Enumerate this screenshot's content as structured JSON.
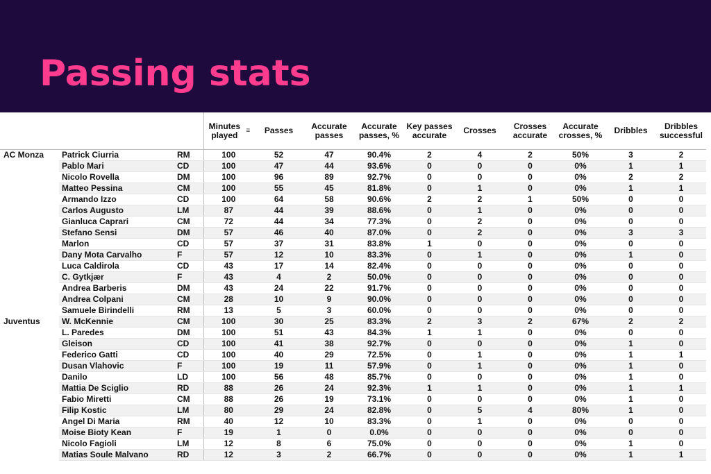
{
  "header": {
    "title": "Passing stats",
    "bg_color": "#1f0a3d",
    "title_color": "#ff3c8e"
  },
  "columns": {
    "minutes": "Minutes played",
    "passes": "Passes",
    "acc_passes": "Accurate passes",
    "acc_pct": "Accurate passes, %",
    "key": "Key passes accurate",
    "crosses": "Crosses",
    "cross_acc": "Crosses accurate",
    "cross_pct": "Accurate crosses, %",
    "dribbles": "Dribbles",
    "drib_succ": "Dribbles successful",
    "sort_icon": "sort-descending-icon"
  },
  "rows": [
    {
      "team": "AC Monza",
      "player": "Patrick Ciurria",
      "pos": "RM",
      "min": "100",
      "passes": "52",
      "acc": "47",
      "pct": "90.4%",
      "key": "2",
      "cr": "4",
      "cra": "2",
      "crp": "50%",
      "dr": "3",
      "drs": "2"
    },
    {
      "team": "",
      "player": "Pablo Mari",
      "pos": "CD",
      "min": "100",
      "passes": "47",
      "acc": "44",
      "pct": "93.6%",
      "key": "0",
      "cr": "0",
      "cra": "0",
      "crp": "0%",
      "dr": "1",
      "drs": "1"
    },
    {
      "team": "",
      "player": "Nicolo Rovella",
      "pos": "DM",
      "min": "100",
      "passes": "96",
      "acc": "89",
      "pct": "92.7%",
      "key": "0",
      "cr": "0",
      "cra": "0",
      "crp": "0%",
      "dr": "2",
      "drs": "2"
    },
    {
      "team": "",
      "player": "Matteo Pessina",
      "pos": "CM",
      "min": "100",
      "passes": "55",
      "acc": "45",
      "pct": "81.8%",
      "key": "0",
      "cr": "1",
      "cra": "0",
      "crp": "0%",
      "dr": "1",
      "drs": "1"
    },
    {
      "team": "",
      "player": "Armando Izzo",
      "pos": "CD",
      "min": "100",
      "passes": "64",
      "acc": "58",
      "pct": "90.6%",
      "key": "2",
      "cr": "2",
      "cra": "1",
      "crp": "50%",
      "dr": "0",
      "drs": "0"
    },
    {
      "team": "",
      "player": "Carlos Augusto",
      "pos": "LM",
      "min": "87",
      "passes": "44",
      "acc": "39",
      "pct": "88.6%",
      "key": "0",
      "cr": "1",
      "cra": "0",
      "crp": "0%",
      "dr": "0",
      "drs": "0"
    },
    {
      "team": "",
      "player": "Gianluca Caprari",
      "pos": "CM",
      "min": "72",
      "passes": "44",
      "acc": "34",
      "pct": "77.3%",
      "key": "0",
      "cr": "2",
      "cra": "0",
      "crp": "0%",
      "dr": "0",
      "drs": "0"
    },
    {
      "team": "",
      "player": "Stefano Sensi",
      "pos": "DM",
      "min": "57",
      "passes": "46",
      "acc": "40",
      "pct": "87.0%",
      "key": "0",
      "cr": "2",
      "cra": "0",
      "crp": "0%",
      "dr": "3",
      "drs": "3"
    },
    {
      "team": "",
      "player": "Marlon",
      "pos": "CD",
      "min": "57",
      "passes": "37",
      "acc": "31",
      "pct": "83.8%",
      "key": "1",
      "cr": "0",
      "cra": "0",
      "crp": "0%",
      "dr": "0",
      "drs": "0"
    },
    {
      "team": "",
      "player": "Dany Mota Carvalho",
      "pos": "F",
      "min": "57",
      "passes": "12",
      "acc": "10",
      "pct": "83.3%",
      "key": "0",
      "cr": "1",
      "cra": "0",
      "crp": "0%",
      "dr": "1",
      "drs": "0"
    },
    {
      "team": "",
      "player": "Luca Caldirola",
      "pos": "CD",
      "min": "43",
      "passes": "17",
      "acc": "14",
      "pct": "82.4%",
      "key": "0",
      "cr": "0",
      "cra": "0",
      "crp": "0%",
      "dr": "0",
      "drs": "0"
    },
    {
      "team": "",
      "player": "C. Gytkjær",
      "pos": "F",
      "min": "43",
      "passes": "4",
      "acc": "2",
      "pct": "50.0%",
      "key": "0",
      "cr": "0",
      "cra": "0",
      "crp": "0%",
      "dr": "0",
      "drs": "0"
    },
    {
      "team": "",
      "player": "Andrea Barberis",
      "pos": "DM",
      "min": "43",
      "passes": "24",
      "acc": "22",
      "pct": "91.7%",
      "key": "0",
      "cr": "0",
      "cra": "0",
      "crp": "0%",
      "dr": "0",
      "drs": "0"
    },
    {
      "team": "",
      "player": "Andrea Colpani",
      "pos": "CM",
      "min": "28",
      "passes": "10",
      "acc": "9",
      "pct": "90.0%",
      "key": "0",
      "cr": "0",
      "cra": "0",
      "crp": "0%",
      "dr": "0",
      "drs": "0"
    },
    {
      "team": "",
      "player": "Samuele Birindelli",
      "pos": "RM",
      "min": "13",
      "passes": "5",
      "acc": "3",
      "pct": "60.0%",
      "key": "0",
      "cr": "0",
      "cra": "0",
      "crp": "0%",
      "dr": "0",
      "drs": "0"
    },
    {
      "team": "Juventus",
      "player": "W. McKennie",
      "pos": "CM",
      "min": "100",
      "passes": "30",
      "acc": "25",
      "pct": "83.3%",
      "key": "2",
      "cr": "3",
      "cra": "2",
      "crp": "67%",
      "dr": "2",
      "drs": "2"
    },
    {
      "team": "",
      "player": "L. Paredes",
      "pos": "DM",
      "min": "100",
      "passes": "51",
      "acc": "43",
      "pct": "84.3%",
      "key": "1",
      "cr": "1",
      "cra": "0",
      "crp": "0%",
      "dr": "0",
      "drs": "0"
    },
    {
      "team": "",
      "player": "Gleison",
      "pos": "CD",
      "min": "100",
      "passes": "41",
      "acc": "38",
      "pct": "92.7%",
      "key": "0",
      "cr": "0",
      "cra": "0",
      "crp": "0%",
      "dr": "1",
      "drs": "0"
    },
    {
      "team": "",
      "player": "Federico Gatti",
      "pos": "CD",
      "min": "100",
      "passes": "40",
      "acc": "29",
      "pct": "72.5%",
      "key": "0",
      "cr": "1",
      "cra": "0",
      "crp": "0%",
      "dr": "1",
      "drs": "1"
    },
    {
      "team": "",
      "player": "Dusan Vlahovic",
      "pos": "F",
      "min": "100",
      "passes": "19",
      "acc": "11",
      "pct": "57.9%",
      "key": "0",
      "cr": "1",
      "cra": "0",
      "crp": "0%",
      "dr": "1",
      "drs": "0"
    },
    {
      "team": "",
      "player": "Danilo",
      "pos": "LD",
      "min": "100",
      "passes": "56",
      "acc": "48",
      "pct": "85.7%",
      "key": "0",
      "cr": "0",
      "cra": "0",
      "crp": "0%",
      "dr": "1",
      "drs": "0"
    },
    {
      "team": "",
      "player": "Mattia De Sciglio",
      "pos": "RD",
      "min": "88",
      "passes": "26",
      "acc": "24",
      "pct": "92.3%",
      "key": "1",
      "cr": "1",
      "cra": "0",
      "crp": "0%",
      "dr": "1",
      "drs": "1"
    },
    {
      "team": "",
      "player": "Fabio Miretti",
      "pos": "CM",
      "min": "88",
      "passes": "26",
      "acc": "19",
      "pct": "73.1%",
      "key": "0",
      "cr": "0",
      "cra": "0",
      "crp": "0%",
      "dr": "1",
      "drs": "0"
    },
    {
      "team": "",
      "player": "Filip Kostic",
      "pos": "LM",
      "min": "80",
      "passes": "29",
      "acc": "24",
      "pct": "82.8%",
      "key": "0",
      "cr": "5",
      "cra": "4",
      "crp": "80%",
      "dr": "1",
      "drs": "0"
    },
    {
      "team": "",
      "player": "Angel Di Maria",
      "pos": "RM",
      "min": "40",
      "passes": "12",
      "acc": "10",
      "pct": "83.3%",
      "key": "0",
      "cr": "1",
      "cra": "0",
      "crp": "0%",
      "dr": "0",
      "drs": "0"
    },
    {
      "team": "",
      "player": "Moise Bioty Kean",
      "pos": "F",
      "min": "19",
      "passes": "1",
      "acc": "0",
      "pct": "0.0%",
      "key": "0",
      "cr": "0",
      "cra": "0",
      "crp": "0%",
      "dr": "0",
      "drs": "0"
    },
    {
      "team": "",
      "player": "Nicolo Fagioli",
      "pos": "LM",
      "min": "12",
      "passes": "8",
      "acc": "6",
      "pct": "75.0%",
      "key": "0",
      "cr": "0",
      "cra": "0",
      "crp": "0%",
      "dr": "1",
      "drs": "0"
    },
    {
      "team": "",
      "player": "Matias Soule Malvano",
      "pos": "RD",
      "min": "12",
      "passes": "3",
      "acc": "2",
      "pct": "66.7%",
      "key": "0",
      "cr": "0",
      "cra": "0",
      "crp": "0%",
      "dr": "1",
      "drs": "1"
    }
  ]
}
